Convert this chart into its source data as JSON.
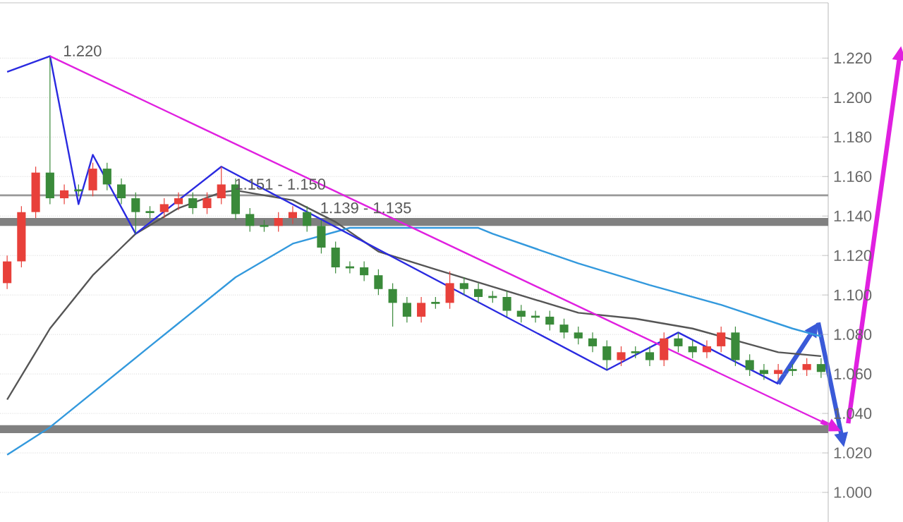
{
  "chart_data": {
    "type": "candlestick",
    "categories": [
      null,
      null,
      null,
      null,
      null,
      null,
      null,
      null,
      null,
      null,
      null,
      null,
      null,
      null,
      null,
      null,
      null,
      null,
      null,
      null,
      null,
      null,
      null,
      null,
      null,
      null,
      null,
      null,
      null,
      null,
      null,
      null,
      null,
      null,
      null,
      null,
      null,
      null,
      null,
      null,
      null,
      null,
      null,
      null,
      null,
      null,
      null,
      null,
      null,
      null,
      null,
      null,
      null,
      null,
      null,
      null,
      null,
      null
    ],
    "ohlc": [
      [
        1.106,
        1.12,
        1.103,
        1.117
      ],
      [
        1.117,
        1.145,
        1.114,
        1.142
      ],
      [
        1.142,
        1.165,
        1.139,
        1.162
      ],
      [
        1.162,
        1.22,
        1.146,
        1.149
      ],
      [
        1.149,
        1.156,
        1.146,
        1.153
      ],
      [
        1.153,
        1.156,
        1.15,
        1.153
      ],
      [
        1.153,
        1.167,
        1.15,
        1.164
      ],
      [
        1.164,
        1.167,
        1.153,
        1.156
      ],
      [
        1.156,
        1.159,
        1.146,
        1.149
      ],
      [
        1.149,
        1.152,
        1.131,
        1.142
      ],
      [
        1.142,
        1.145,
        1.139,
        1.142
      ],
      [
        1.142,
        1.149,
        1.139,
        1.146
      ],
      [
        1.146,
        1.152,
        1.143,
        1.149
      ],
      [
        1.149,
        1.152,
        1.141,
        1.144
      ],
      [
        1.144,
        1.152,
        1.141,
        1.149
      ],
      [
        1.149,
        1.165,
        1.146,
        1.156
      ],
      [
        1.156,
        1.159,
        1.138,
        1.141
      ],
      [
        1.141,
        1.144,
        1.132,
        1.135
      ],
      [
        1.135,
        1.138,
        1.132,
        1.135
      ],
      [
        1.135,
        1.142,
        1.132,
        1.139
      ],
      [
        1.139,
        1.145,
        1.136,
        1.142
      ],
      [
        1.142,
        1.145,
        1.132,
        1.135
      ],
      [
        1.135,
        1.138,
        1.121,
        1.124
      ],
      [
        1.124,
        1.127,
        1.111,
        1.114
      ],
      [
        1.114,
        1.117,
        1.111,
        1.114
      ],
      [
        1.114,
        1.117,
        1.107,
        1.11
      ],
      [
        1.11,
        1.113,
        1.1,
        1.103
      ],
      [
        1.103,
        1.106,
        1.084,
        1.096
      ],
      [
        1.096,
        1.099,
        1.086,
        1.089
      ],
      [
        1.089,
        1.099,
        1.086,
        1.096
      ],
      [
        1.096,
        1.099,
        1.093,
        1.096
      ],
      [
        1.096,
        1.112,
        1.093,
        1.106
      ],
      [
        1.106,
        1.109,
        1.1,
        1.103
      ],
      [
        1.103,
        1.106,
        1.096,
        1.099
      ],
      [
        1.099,
        1.102,
        1.096,
        1.099
      ],
      [
        1.099,
        1.102,
        1.089,
        1.092
      ],
      [
        1.092,
        1.095,
        1.086,
        1.089
      ],
      [
        1.089,
        1.092,
        1.086,
        1.089
      ],
      [
        1.089,
        1.092,
        1.082,
        1.085
      ],
      [
        1.085,
        1.088,
        1.078,
        1.081
      ],
      [
        1.081,
        1.084,
        1.075,
        1.078
      ],
      [
        1.078,
        1.081,
        1.071,
        1.074
      ],
      [
        1.074,
        1.077,
        1.062,
        1.067
      ],
      [
        1.067,
        1.074,
        1.064,
        1.071
      ],
      [
        1.071,
        1.074,
        1.068,
        1.071
      ],
      [
        1.071,
        1.074,
        1.064,
        1.067
      ],
      [
        1.067,
        1.081,
        1.064,
        1.078
      ],
      [
        1.078,
        1.081,
        1.071,
        1.074
      ],
      [
        1.074,
        1.077,
        1.068,
        1.071
      ],
      [
        1.071,
        1.077,
        1.068,
        1.074
      ],
      [
        1.074,
        1.084,
        1.071,
        1.081
      ],
      [
        1.081,
        1.084,
        1.064,
        1.067
      ],
      [
        1.067,
        1.07,
        1.059,
        1.062
      ],
      [
        1.062,
        1.065,
        1.057,
        1.06
      ],
      [
        1.06,
        1.065,
        1.057,
        1.062
      ],
      [
        1.062,
        1.065,
        1.059,
        1.062
      ],
      [
        1.062,
        1.068,
        1.059,
        1.065
      ],
      [
        1.065,
        1.068,
        1.058,
        1.061
      ]
    ],
    "colors": [
      "#e8403a",
      "#e8403a",
      "#e8403a",
      "#3a8a3a",
      "#e8403a",
      "#3a8a3a",
      "#e8403a",
      "#3a8a3a",
      "#3a8a3a",
      "#3a8a3a",
      "#3a8a3a",
      "#e8403a",
      "#e8403a",
      "#3a8a3a",
      "#e8403a",
      "#e8403a",
      "#3a8a3a",
      "#3a8a3a",
      "#3a8a3a",
      "#e8403a",
      "#e8403a",
      "#3a8a3a",
      "#3a8a3a",
      "#3a8a3a",
      "#3a8a3a",
      "#3a8a3a",
      "#3a8a3a",
      "#3a8a3a",
      "#3a8a3a",
      "#e8403a",
      "#3a8a3a",
      "#e8403a",
      "#3a8a3a",
      "#3a8a3a",
      "#3a8a3a",
      "#3a8a3a",
      "#3a8a3a",
      "#3a8a3a",
      "#3a8a3a",
      "#3a8a3a",
      "#3a8a3a",
      "#3a8a3a",
      "#3a8a3a",
      "#e8403a",
      "#3a8a3a",
      "#3a8a3a",
      "#e8403a",
      "#3a8a3a",
      "#3a8a3a",
      "#e8403a",
      "#e8403a",
      "#3a8a3a",
      "#3a8a3a",
      "#3a8a3a",
      "#e8403a",
      "#3a8a3a",
      "#e8403a",
      "#3a8a3a"
    ],
    "series": [
      {
        "type": "line",
        "color": "#555555",
        "values": [
          1.047,
          null,
          null,
          1.083,
          null,
          null,
          1.11,
          null,
          1.124,
          1.131,
          null,
          null,
          1.144,
          null,
          null,
          1.152,
          1.153,
          null,
          null,
          null,
          1.148,
          null,
          null,
          1.137,
          null,
          null,
          1.122,
          null,
          null,
          null,
          1.113,
          null,
          null,
          null,
          null,
          1.102,
          null,
          null,
          null,
          null,
          1.091,
          null,
          null,
          null,
          1.088,
          null,
          null,
          null,
          1.083,
          null,
          null,
          null,
          1.075,
          null,
          1.071,
          null,
          null,
          1.069
        ]
      },
      {
        "type": "line",
        "color": "#3399dd",
        "values": [
          1.019,
          null,
          null,
          1.033,
          null,
          null,
          null,
          null,
          null,
          null,
          1.074,
          null,
          null,
          null,
          null,
          null,
          1.109,
          null,
          null,
          null,
          1.126,
          null,
          null,
          null,
          1.134,
          null,
          null,
          null,
          null,
          null,
          null,
          null,
          null,
          1.134,
          1.131,
          null,
          null,
          null,
          null,
          null,
          1.116,
          null,
          null,
          null,
          null,
          1.105,
          null,
          null,
          null,
          null,
          1.095,
          null,
          null,
          null,
          null,
          1.083,
          null,
          1.079
        ]
      },
      {
        "type": "line",
        "color": "#2a2ae0",
        "values": [
          1.213,
          null,
          null,
          1.221,
          null,
          1.146,
          1.171,
          null,
          null,
          1.131,
          null,
          null,
          null,
          null,
          null,
          1.165,
          null,
          null,
          null,
          null,
          null,
          null,
          null,
          null,
          null,
          null,
          null,
          null,
          null,
          null,
          null,
          null,
          null,
          null,
          null,
          null,
          null,
          null,
          null,
          null,
          null,
          null,
          1.062,
          null,
          null,
          null,
          null,
          1.081,
          null,
          null,
          null,
          null,
          null,
          null,
          1.055,
          null,
          null,
          null
        ]
      },
      {
        "type": "line",
        "color": "#e020e0",
        "values": [
          null,
          null,
          null,
          1.221,
          null,
          null,
          null,
          null,
          null,
          null,
          null,
          null,
          null,
          null,
          null,
          null,
          null,
          null,
          null,
          null,
          null,
          null,
          null,
          null,
          null,
          null,
          null,
          null,
          null,
          null,
          null,
          null,
          null,
          null,
          null,
          null,
          null,
          null,
          null,
          null,
          null,
          null,
          null,
          null,
          null,
          null,
          null,
          null,
          null,
          null,
          null,
          null,
          null,
          null,
          null,
          null,
          null,
          1.036
        ]
      }
    ],
    "ylim": [
      0.985,
      1.248
    ],
    "yticks": [
      {
        "value": 1.0,
        "label": "1.000"
      },
      {
        "value": 1.02,
        "label": "1.020"
      },
      {
        "value": 1.04,
        "label": "1.040"
      },
      {
        "value": 1.06,
        "label": "1.060"
      },
      {
        "value": 1.08,
        "label": "1.080"
      },
      {
        "value": 1.1,
        "label": "1.100"
      },
      {
        "value": 1.12,
        "label": "1.120"
      },
      {
        "value": 1.14,
        "label": "1.140"
      },
      {
        "value": 1.16,
        "label": "1.160"
      },
      {
        "value": 1.18,
        "label": "1.180"
      },
      {
        "value": 1.2,
        "label": "1.200"
      },
      {
        "value": 1.22,
        "label": "1.220"
      }
    ],
    "bands": [
      {
        "axis": "y",
        "from": 1.15,
        "to": 1.151,
        "color": "#999999"
      },
      {
        "axis": "y",
        "from": 1.135,
        "to": 1.139,
        "color": "#808080"
      },
      {
        "axis": "y",
        "from": 1.03,
        "to": 1.034,
        "color": "#808080"
      }
    ],
    "annotations": [
      "1.220",
      "1.151 - 1.150",
      "1.139 - 1.135"
    ],
    "grid": "y",
    "tick_labels": "y"
  }
}
